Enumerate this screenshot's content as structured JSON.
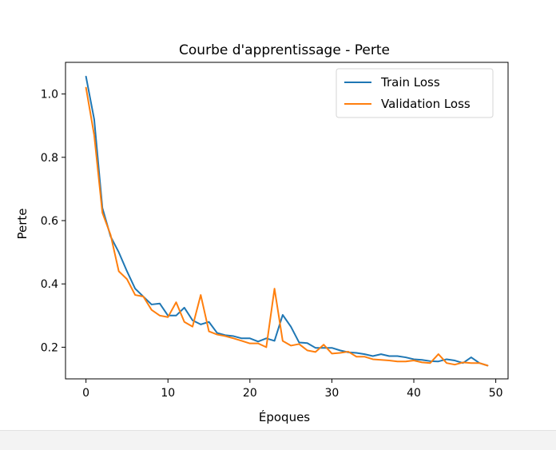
{
  "chart_data": {
    "type": "line",
    "title": "Courbe d'apprentissage - Perte",
    "xlabel": "Époques",
    "ylabel": "Perte",
    "xlim": [
      -2.5,
      51.5
    ],
    "ylim": [
      0.1,
      1.1
    ],
    "xticks": [
      0,
      10,
      20,
      30,
      40,
      50
    ],
    "yticks": [
      0.2,
      0.4,
      0.6,
      0.8,
      1.0
    ],
    "xtick_labels": [
      "0",
      "10",
      "20",
      "30",
      "40",
      "50"
    ],
    "ytick_labels": [
      "0.2",
      "0.4",
      "0.6",
      "0.8",
      "1.0"
    ],
    "grid": false,
    "legend_position": "top-right",
    "x": [
      0,
      1,
      2,
      3,
      4,
      5,
      6,
      7,
      8,
      9,
      10,
      11,
      12,
      13,
      14,
      15,
      16,
      17,
      18,
      19,
      20,
      21,
      22,
      23,
      24,
      25,
      26,
      27,
      28,
      29,
      30,
      31,
      32,
      33,
      34,
      35,
      36,
      37,
      38,
      39,
      40,
      41,
      42,
      43,
      44,
      45,
      46,
      47,
      48,
      49
    ],
    "series": [
      {
        "name": "Train Loss",
        "color": "#1f77b4",
        "values": [
          1.055,
          0.92,
          0.64,
          0.55,
          0.5,
          0.44,
          0.385,
          0.36,
          0.335,
          0.338,
          0.3,
          0.3,
          0.325,
          0.285,
          0.272,
          0.28,
          0.245,
          0.238,
          0.235,
          0.228,
          0.228,
          0.218,
          0.228,
          0.22,
          0.302,
          0.265,
          0.215,
          0.213,
          0.198,
          0.198,
          0.198,
          0.19,
          0.184,
          0.182,
          0.178,
          0.172,
          0.178,
          0.172,
          0.172,
          0.168,
          0.162,
          0.16,
          0.156,
          0.155,
          0.162,
          0.158,
          0.15,
          0.168,
          0.15,
          0.142
        ]
      },
      {
        "name": "Validation Loss",
        "color": "#ff7f0e",
        "values": [
          1.02,
          0.87,
          0.625,
          0.555,
          0.44,
          0.415,
          0.365,
          0.36,
          0.318,
          0.3,
          0.295,
          0.342,
          0.28,
          0.265,
          0.365,
          0.25,
          0.24,
          0.235,
          0.228,
          0.22,
          0.212,
          0.212,
          0.2,
          0.385,
          0.22,
          0.205,
          0.21,
          0.19,
          0.185,
          0.208,
          0.18,
          0.182,
          0.186,
          0.17,
          0.17,
          0.162,
          0.16,
          0.158,
          0.155,
          0.155,
          0.158,
          0.152,
          0.15,
          0.178,
          0.15,
          0.145,
          0.152,
          0.15,
          0.15,
          0.142
        ]
      }
    ]
  }
}
